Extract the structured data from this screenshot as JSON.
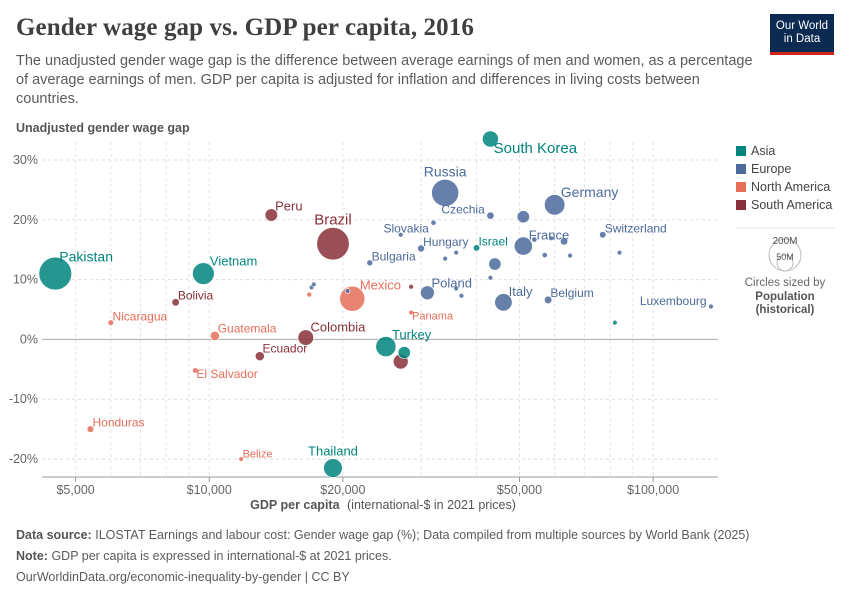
{
  "header": {
    "title": "Gender wage gap vs. GDP per capita, 2016",
    "subtitle": "The unadjusted gender wage gap is the difference between average earnings of men and women, as a percentage of average earnings of men. GDP per capita is adjusted for inflation and differences in living costs between countries.",
    "logo_line1": "Our World",
    "logo_line2": "in Data"
  },
  "footer": {
    "source_label": "Data source:",
    "source_text": "ILOSTAT Earnings and labour cost: Gender wage gap (%); Data compiled from multiple sources by World Bank (2025)",
    "note_label": "Note:",
    "note_text": "GDP per capita is expressed in international-$ at 2021 prices.",
    "url": "OurWorldinData.org/economic-inequality-by-gender | CC BY"
  },
  "colors": {
    "Asia": "#00847e",
    "Europe": "#4c6a9c",
    "North America": "#e56e5a",
    "South America": "#883039"
  },
  "chart_data": {
    "type": "scatter",
    "title": "Gender wage gap vs. GDP per capita, 2016",
    "ylabel": "Unadjusted gender wage gap",
    "xlabel_bold": "GDP per capita",
    "xlabel_rest": "(international-$ in 2021 prices)",
    "x_scale": "log",
    "xlim": [
      4200,
      140000
    ],
    "ylim": [
      -23,
      33
    ],
    "x_ticks": [
      {
        "value": 5000,
        "label": "$5,000"
      },
      {
        "value": 10000,
        "label": "$10,000"
      },
      {
        "value": 20000,
        "label": "$20,000"
      },
      {
        "value": 50000,
        "label": "$50,000"
      },
      {
        "value": 100000,
        "label": "$100,000"
      }
    ],
    "y_ticks": [
      {
        "value": 30,
        "label": "30%"
      },
      {
        "value": 20,
        "label": "20%"
      },
      {
        "value": 10,
        "label": "10%"
      },
      {
        "value": 0,
        "label": "0%"
      },
      {
        "value": -10,
        "label": "-10%"
      },
      {
        "value": -20,
        "label": "-20%"
      }
    ],
    "legend": {
      "placement": "right",
      "items": [
        "Asia",
        "Europe",
        "North America",
        "South America"
      ],
      "size_label_large": "200M",
      "size_label_small": "50M",
      "size_caption": "Circles sized by",
      "size_var_line1": "Population",
      "size_var_line2": "(historical)"
    },
    "points": [
      {
        "name": "South Korea",
        "region": "Asia",
        "gdp": 43000,
        "gap": 33.5,
        "pop": 51,
        "label": "South Korea"
      },
      {
        "name": "Pakistan",
        "region": "Asia",
        "gdp": 4500,
        "gap": 11,
        "pop": 210,
        "label": "Pakistan"
      },
      {
        "name": "Vietnam",
        "region": "Asia",
        "gdp": 9700,
        "gap": 11,
        "pop": 93,
        "label": "Vietnam"
      },
      {
        "name": "Israel",
        "region": "Asia",
        "gdp": 40000,
        "gap": 15.3,
        "pop": 8.5,
        "label": "Israel"
      },
      {
        "name": "Turkey",
        "region": "Asia",
        "gdp": 25000,
        "gap": -1.2,
        "pop": 80,
        "label": "Turkey"
      },
      {
        "name": "Thailand",
        "region": "Asia",
        "gdp": 19000,
        "gap": -21.5,
        "pop": 69,
        "label": "Thailand"
      },
      {
        "name": "Asia small 1",
        "region": "Asia",
        "gdp": 27500,
        "gap": -2.2,
        "pop": 30,
        "label": ""
      },
      {
        "name": "Asia small 2",
        "region": "Asia",
        "gdp": 82000,
        "gap": 2.8,
        "pop": 0.5,
        "label": ""
      },
      {
        "name": "Russia",
        "region": "Europe",
        "gdp": 34000,
        "gap": 24.5,
        "pop": 144,
        "label": "Russia"
      },
      {
        "name": "Germany",
        "region": "Europe",
        "gdp": 60000,
        "gap": 22.5,
        "pop": 82,
        "label": "Germany"
      },
      {
        "name": "Czechia",
        "region": "Europe",
        "gdp": 43000,
        "gap": 20.7,
        "pop": 10.5,
        "label": "Czechia"
      },
      {
        "name": "Slovakia",
        "region": "Europe",
        "gdp": 32000,
        "gap": 19.5,
        "pop": 5.4,
        "label": "Slovakia"
      },
      {
        "name": "France",
        "region": "Europe",
        "gdp": 51000,
        "gap": 15.6,
        "pop": 65,
        "label": "France"
      },
      {
        "name": "Switzerland",
        "region": "Europe",
        "gdp": 77000,
        "gap": 17.5,
        "pop": 8.4,
        "label": "Switzerland"
      },
      {
        "name": "Hungary",
        "region": "Europe",
        "gdp": 30000,
        "gap": 15.2,
        "pop": 9.8,
        "label": "Hungary"
      },
      {
        "name": "Bulgaria",
        "region": "Europe",
        "gdp": 23000,
        "gap": 12.8,
        "pop": 7.1,
        "label": "Bulgaria"
      },
      {
        "name": "Poland",
        "region": "Europe",
        "gdp": 31000,
        "gap": 7.8,
        "pop": 38,
        "label": "Poland"
      },
      {
        "name": "Italy",
        "region": "Europe",
        "gdp": 46000,
        "gap": 6.2,
        "pop": 60,
        "label": "Italy"
      },
      {
        "name": "Belgium",
        "region": "Europe",
        "gdp": 58000,
        "gap": 6.6,
        "pop": 11.4,
        "label": "Belgium"
      },
      {
        "name": "Luxembourg",
        "region": "Europe",
        "gdp": 135000,
        "gap": 5.5,
        "pop": 0.6,
        "label": "Luxembourg"
      },
      {
        "name": "Europe cluster 1",
        "region": "Europe",
        "gdp": 51000,
        "gap": 20.5,
        "pop": 30,
        "label": ""
      },
      {
        "name": "Europe cluster 2",
        "region": "Europe",
        "gdp": 44000,
        "gap": 12.6,
        "pop": 30,
        "label": ""
      },
      {
        "name": "Europe cluster 3",
        "region": "Europe",
        "gdp": 63000,
        "gap": 16.4,
        "pop": 11,
        "label": ""
      },
      {
        "name": "Europe cluster 4",
        "region": "Europe",
        "gdp": 54000,
        "gap": 16.7,
        "pop": 5.7,
        "label": ""
      },
      {
        "name": "Europe cluster 5",
        "region": "Europe",
        "gdp": 57000,
        "gap": 14.1,
        "pop": 5.5,
        "label": ""
      },
      {
        "name": "Europe cluster 6",
        "region": "Europe",
        "gdp": 65000,
        "gap": 14,
        "pop": 1.3,
        "label": ""
      },
      {
        "name": "Europe cluster 7",
        "region": "Europe",
        "gdp": 84000,
        "gap": 14.5,
        "pop": 2,
        "label": ""
      },
      {
        "name": "Europe cluster 8",
        "region": "Europe",
        "gdp": 59000,
        "gap": 16.9,
        "pop": 1.3,
        "label": ""
      },
      {
        "name": "Europe cluster 9",
        "region": "Europe",
        "gdp": 36000,
        "gap": 14.5,
        "pop": 1.3,
        "label": ""
      },
      {
        "name": "Europe cluster 10",
        "region": "Europe",
        "gdp": 34000,
        "gap": 13.5,
        "pop": 1,
        "label": ""
      },
      {
        "name": "Europe cluster 11",
        "region": "Europe",
        "gdp": 36000,
        "gap": 8.5,
        "pop": 4,
        "label": ""
      },
      {
        "name": "Europe cluster 12",
        "region": "Europe",
        "gdp": 37000,
        "gap": 7.3,
        "pop": 1.3,
        "label": ""
      },
      {
        "name": "Europe cluster 13",
        "region": "Europe",
        "gdp": 43000,
        "gap": 10.3,
        "pop": 1.3,
        "label": ""
      },
      {
        "name": "Europe cluster 14",
        "region": "Europe",
        "gdp": 27000,
        "gap": 17.5,
        "pop": 0.7,
        "label": ""
      },
      {
        "name": "Europe cluster 15",
        "region": "Europe",
        "gdp": 17200,
        "gap": 9.2,
        "pop": 2,
        "label": ""
      },
      {
        "name": "Europe cluster 16",
        "region": "Europe",
        "gdp": 17000,
        "gap": 8.7,
        "pop": 2.9,
        "label": ""
      },
      {
        "name": "Europe cluster 17",
        "region": "Europe",
        "gdp": 20500,
        "gap": 8.1,
        "pop": 0.7,
        "label": ""
      },
      {
        "name": "Mexico",
        "region": "North America",
        "gdp": 21000,
        "gap": 6.8,
        "pop": 124,
        "label": "Mexico"
      },
      {
        "name": "Nicaragua",
        "region": "North America",
        "gdp": 6000,
        "gap": 2.8,
        "pop": 6.4,
        "label": "Nicaragua"
      },
      {
        "name": "Guatemala",
        "region": "North America",
        "gdp": 10300,
        "gap": 0.6,
        "pop": 16.6,
        "label": "Guatemala"
      },
      {
        "name": "El Salvador",
        "region": "North America",
        "gdp": 9300,
        "gap": -5.2,
        "pop": 6.3,
        "label": "El Salvador"
      },
      {
        "name": "Honduras",
        "region": "North America",
        "gdp": 5400,
        "gap": -15,
        "pop": 9.1,
        "label": "Honduras"
      },
      {
        "name": "Belize",
        "region": "North America",
        "gdp": 11800,
        "gap": -20,
        "pop": 0.37,
        "label": "Belize"
      },
      {
        "name": "Panama",
        "region": "North America",
        "gdp": 28500,
        "gap": 4.5,
        "pop": 4,
        "label": "Panama"
      },
      {
        "name": "North America small",
        "region": "North America",
        "gdp": 16800,
        "gap": 7.5,
        "pop": 5,
        "label": ""
      },
      {
        "name": "Brazil",
        "region": "South America",
        "gdp": 19000,
        "gap": 16,
        "pop": 206,
        "label": "Brazil"
      },
      {
        "name": "Peru",
        "region": "South America",
        "gdp": 13800,
        "gap": 20.8,
        "pop": 31,
        "label": "Peru"
      },
      {
        "name": "Bolivia",
        "region": "South America",
        "gdp": 8400,
        "gap": 6.2,
        "pop": 11,
        "label": "Bolivia"
      },
      {
        "name": "Colombia",
        "region": "South America",
        "gdp": 16500,
        "gap": 0.3,
        "pop": 48,
        "label": "Colombia"
      },
      {
        "name": "Ecuador",
        "region": "South America",
        "gdp": 13000,
        "gap": -2.8,
        "pop": 16.4,
        "label": "Ecuador"
      },
      {
        "name": "South America small 1",
        "region": "South America",
        "gdp": 27000,
        "gap": -3.7,
        "pop": 44,
        "label": ""
      },
      {
        "name": "South America small 2",
        "region": "South America",
        "gdp": 28500,
        "gap": 8.8,
        "pop": 3.4,
        "label": ""
      }
    ]
  }
}
